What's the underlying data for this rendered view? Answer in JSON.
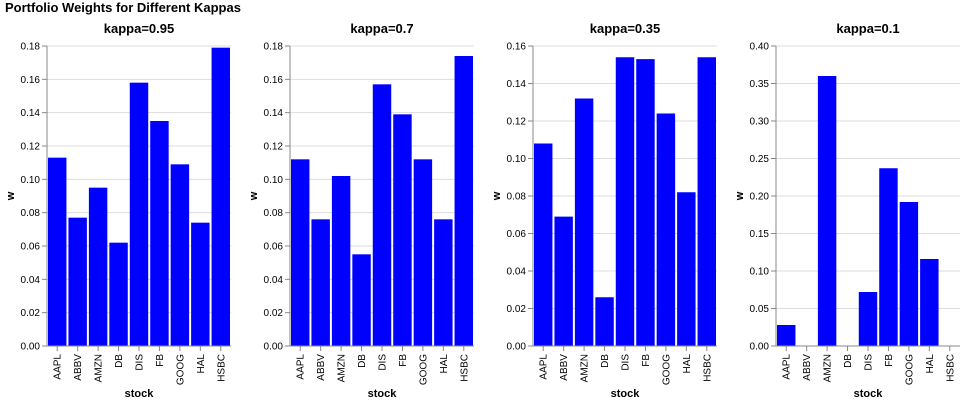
{
  "title": "Portfolio Weights for Different Kappas",
  "colors": {
    "bar": "#0000ff",
    "grid": "#dddddd",
    "axis": "#888888",
    "text": "#000000"
  },
  "chart_data": [
    {
      "type": "bar",
      "title": "kappa=0.95",
      "xlabel": "stock",
      "ylabel": "w",
      "categories": [
        "AAPL",
        "ABBV",
        "AMZN",
        "DB",
        "DIS",
        "FB",
        "GOOG",
        "HAL",
        "HSBC"
      ],
      "values": [
        0.113,
        0.077,
        0.095,
        0.062,
        0.158,
        0.135,
        0.109,
        0.074,
        0.179
      ],
      "ylim": [
        0,
        0.18
      ],
      "yticks": [
        "0.00",
        "0.02",
        "0.04",
        "0.06",
        "0.08",
        "0.10",
        "0.12",
        "0.14",
        "0.16",
        "0.18"
      ],
      "grid": true
    },
    {
      "type": "bar",
      "title": "kappa=0.7",
      "xlabel": "stock",
      "ylabel": "w",
      "categories": [
        "AAPL",
        "ABBV",
        "AMZN",
        "DB",
        "DIS",
        "FB",
        "GOOG",
        "HAL",
        "HSBC"
      ],
      "values": [
        0.112,
        0.076,
        0.102,
        0.055,
        0.157,
        0.139,
        0.112,
        0.076,
        0.174
      ],
      "ylim": [
        0,
        0.18
      ],
      "yticks": [
        "0.00",
        "0.02",
        "0.04",
        "0.06",
        "0.08",
        "0.10",
        "0.12",
        "0.14",
        "0.16",
        "0.18"
      ],
      "grid": true
    },
    {
      "type": "bar",
      "title": "kappa=0.35",
      "xlabel": "stock",
      "ylabel": "w",
      "categories": [
        "AAPL",
        "ABBV",
        "AMZN",
        "DB",
        "DIS",
        "FB",
        "GOOG",
        "HAL",
        "HSBC"
      ],
      "values": [
        0.108,
        0.069,
        0.132,
        0.026,
        0.154,
        0.153,
        0.124,
        0.082,
        0.154
      ],
      "ylim": [
        0,
        0.16
      ],
      "yticks": [
        "0.00",
        "0.02",
        "0.04",
        "0.06",
        "0.08",
        "0.10",
        "0.12",
        "0.14",
        "0.16"
      ],
      "grid": true
    },
    {
      "type": "bar",
      "title": "kappa=0.1",
      "xlabel": "stock",
      "ylabel": "w",
      "categories": [
        "AAPL",
        "ABBV",
        "AMZN",
        "DB",
        "DIS",
        "FB",
        "GOOG",
        "HAL",
        "HSBC"
      ],
      "values": [
        0.028,
        0.0,
        0.36,
        0.0,
        0.072,
        0.237,
        0.192,
        0.116,
        0.0
      ],
      "ylim": [
        0,
        0.4
      ],
      "yticks": [
        "0.00",
        "0.05",
        "0.10",
        "0.15",
        "0.20",
        "0.25",
        "0.30",
        "0.35",
        "0.40"
      ],
      "grid": true
    }
  ]
}
